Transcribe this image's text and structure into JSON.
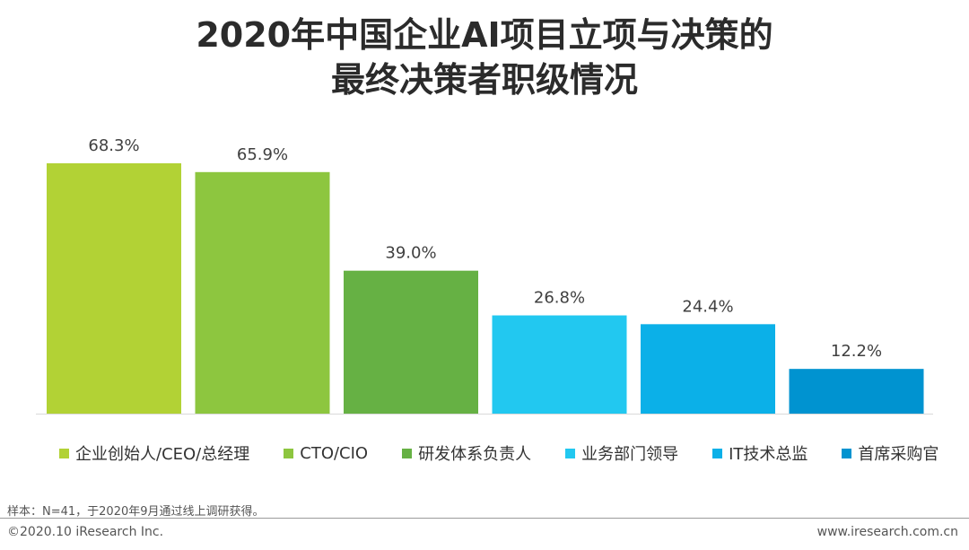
{
  "title_line1": "2020年中国企业AI项目立项与决策的",
  "title_line2": "最终决策者职级情况",
  "chart_data": {
    "type": "bar",
    "title": "2020年中国企业AI项目立项与决策的最终决策者职级情况",
    "categories": [
      "企业创始人/CEO/总经理",
      "CTO/CIO",
      "研发体系负责人",
      "业务部门领导",
      "IT技术总监",
      "首席采购官"
    ],
    "values": [
      68.3,
      65.9,
      39.0,
      26.8,
      24.4,
      12.2
    ],
    "value_labels": [
      "68.3%",
      "65.9%",
      "39.0%",
      "26.8%",
      "24.4%",
      "12.2%"
    ],
    "colors": [
      "#b2d235",
      "#8dc63f",
      "#66b144",
      "#22c8f0",
      "#0bb0e8",
      "#0093d0"
    ],
    "xlabel": "",
    "ylabel": "",
    "ylim": [
      0,
      68.3
    ],
    "grid": false,
    "legend": "bottom"
  },
  "footer": {
    "note": "样本：N=41，于2020年9月通过线上调研获得。",
    "copyright": "©2020.10 iResearch Inc.",
    "website": "www.iresearch.com.cn"
  }
}
